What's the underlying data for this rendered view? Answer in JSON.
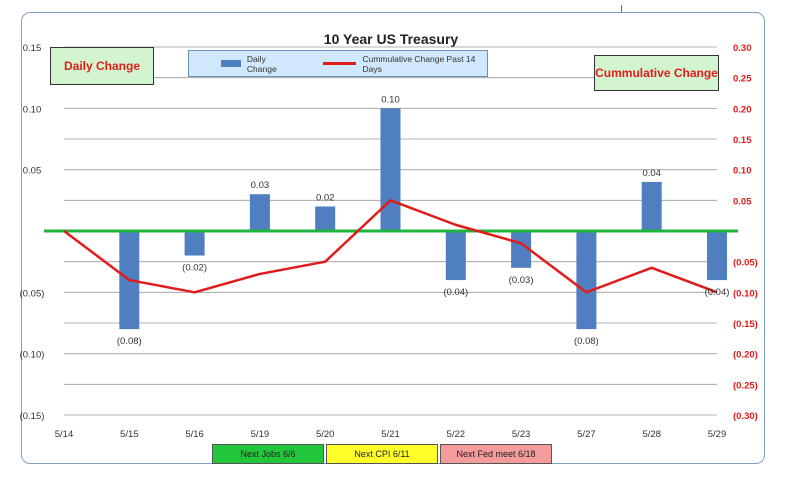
{
  "chart_data": {
    "type": "bar",
    "title": "10 Year US Treasury",
    "categories": [
      "5/14",
      "5/15",
      "5/16",
      "5/19",
      "5/20",
      "5/21",
      "5/22",
      "5/23",
      "5/27",
      "5/28",
      "5/29"
    ],
    "series": [
      {
        "name": "Daily Change",
        "type": "bar",
        "axis": "left",
        "color": "#4f7fc0",
        "values": [
          0,
          -0.08,
          -0.02,
          0.03,
          0.02,
          0.1,
          -0.04,
          -0.03,
          -0.08,
          0.04,
          -0.04
        ],
        "data_labels": [
          "",
          "(0.08)",
          "(0.02)",
          "0.03",
          "0.02",
          "0.10",
          "(0.04)",
          "(0.03)",
          "(0.08)",
          "0.04",
          "(0.04)"
        ]
      },
      {
        "name": "Cummulative Change Past 14 Days",
        "type": "line",
        "axis": "right",
        "color": "#e21b1b",
        "values": [
          0.0,
          -0.08,
          -0.1,
          -0.07,
          -0.05,
          0.05,
          0.01,
          -0.02,
          -0.1,
          -0.06,
          -0.1
        ]
      }
    ],
    "left_axis": {
      "label": "Daily Change",
      "ylim": [
        -0.15,
        0.15
      ],
      "ticks": [
        {
          "v": 0.15,
          "t": "0.15"
        },
        {
          "v": 0.1,
          "t": "0.10"
        },
        {
          "v": 0.05,
          "t": "0.05"
        },
        {
          "v": 0.0,
          "t": ""
        },
        {
          "v": -0.05,
          "t": "(0.05)"
        },
        {
          "v": -0.1,
          "t": "(0.10)"
        },
        {
          "v": -0.15,
          "t": "(0.15)"
        }
      ]
    },
    "right_axis": {
      "label": "Cummulative Change",
      "ylim": [
        -0.3,
        0.3
      ],
      "color": "#e21b1b",
      "ticks": [
        {
          "v": 0.3,
          "t": "0.30"
        },
        {
          "v": 0.25,
          "t": "0.25"
        },
        {
          "v": 0.2,
          "t": "0.20"
        },
        {
          "v": 0.15,
          "t": "0.15"
        },
        {
          "v": 0.1,
          "t": "0.10"
        },
        {
          "v": 0.05,
          "t": "0.05"
        },
        {
          "v": -0.05,
          "t": "(0.05)"
        },
        {
          "v": -0.1,
          "t": "(0.10)"
        },
        {
          "v": -0.15,
          "t": "(0.15)"
        },
        {
          "v": -0.2,
          "t": "(0.20)"
        },
        {
          "v": -0.25,
          "t": "(0.25)"
        },
        {
          "v": -0.3,
          "t": "(0.30)"
        }
      ]
    },
    "gridlines": [
      0.15,
      0.125,
      0.1,
      0.075,
      0.05,
      0.025,
      -0.025,
      -0.05,
      -0.075,
      -0.1,
      -0.125,
      -0.15
    ],
    "zero_line_color": "#1fb43c",
    "legend_position": "top-center",
    "events": [
      {
        "label": "Next Jobs 6/6",
        "color": "#21c63a"
      },
      {
        "label": "Next CPI 6/11",
        "color": "#ffff2a"
      },
      {
        "label": "Next Fed meet 6/18",
        "color": "#f49b9b"
      }
    ]
  }
}
